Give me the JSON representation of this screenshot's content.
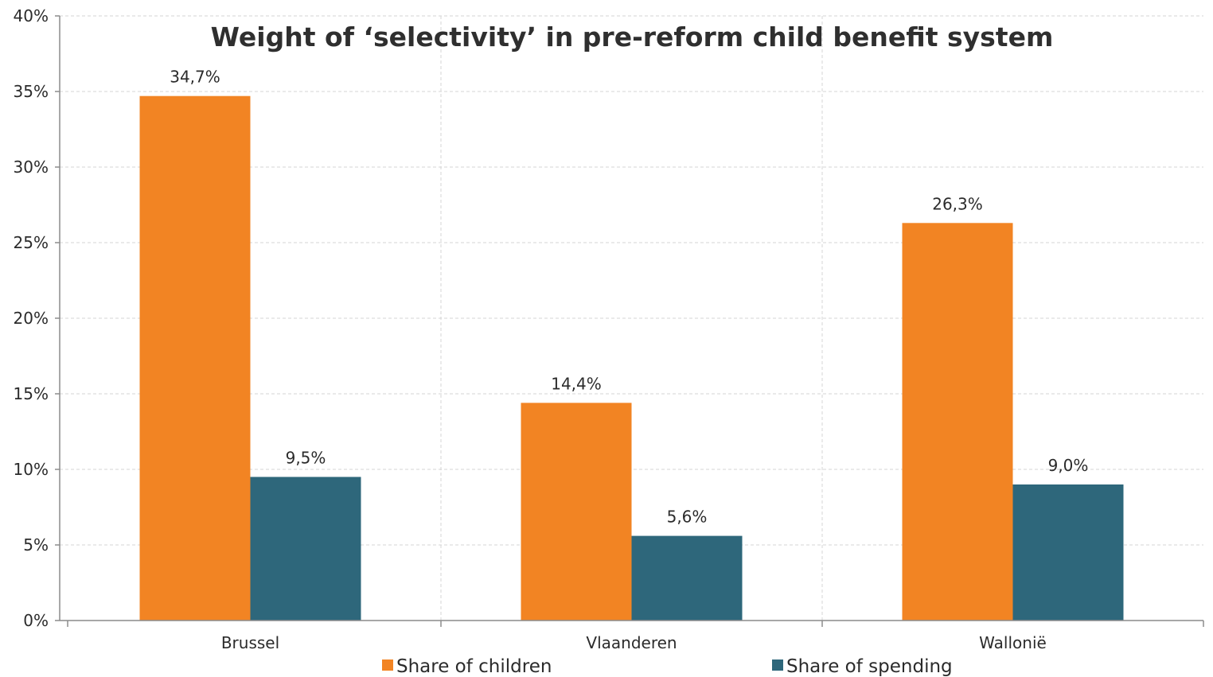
{
  "chart_data": {
    "type": "bar",
    "title": "Weight of ‘selectivity’ in pre-reform child benefit system",
    "xlabel": "",
    "ylabel": "",
    "categories": [
      "Brussel",
      "Vlaanderen",
      "Wallonië"
    ],
    "series": [
      {
        "name": "Share of children",
        "color": "#f28423",
        "values": [
          34.7,
          14.4,
          26.3
        ],
        "labels": [
          "34,7%",
          "14,4%",
          "26,3%"
        ]
      },
      {
        "name": "Share of spending",
        "color": "#2e677b",
        "values": [
          9.5,
          5.6,
          9.0
        ],
        "labels": [
          "9,5%",
          "5,6%",
          "9,0%"
        ]
      }
    ],
    "ylim": [
      0,
      40
    ],
    "yticks": [
      0,
      5,
      10,
      15,
      20,
      25,
      30,
      35,
      40
    ],
    "ytick_labels": [
      "0%",
      "5%",
      "10%",
      "15%",
      "20%",
      "25%",
      "30%",
      "35%",
      "40%"
    ],
    "grid": true,
    "legend_position": "bottom"
  }
}
